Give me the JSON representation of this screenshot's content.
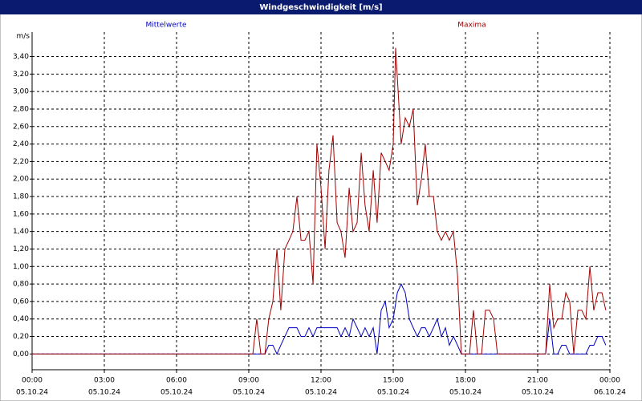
{
  "chart_data": {
    "type": "line",
    "title": "Windgeschwindigkeit [m/s]",
    "y_unit": "m/s",
    "xlim": [
      0,
      24
    ],
    "ylim": [
      -0.18,
      3.68
    ],
    "grid": true,
    "xticks": [
      {
        "value": 0,
        "label": "00:00"
      },
      {
        "value": 3,
        "label": "03:00"
      },
      {
        "value": 6,
        "label": "06:00"
      },
      {
        "value": 9,
        "label": "09:00"
      },
      {
        "value": 12,
        "label": "12:00"
      },
      {
        "value": 15,
        "label": "15:00"
      },
      {
        "value": 18,
        "label": "18:00"
      },
      {
        "value": 21,
        "label": "21:00"
      },
      {
        "value": 24,
        "label": "00:00"
      }
    ],
    "xtick_dates": [
      "05.10.24",
      "05.10.24",
      "05.10.24",
      "05.10.24",
      "05.10.24",
      "05.10.24",
      "05.10.24",
      "05.10.24",
      "06.10.24"
    ],
    "yticks": [
      {
        "value": 0,
        "label": "0,00"
      },
      {
        "value": 0.2,
        "label": "0,20"
      },
      {
        "value": 0.4,
        "label": "0,40"
      },
      {
        "value": 0.6,
        "label": "0,60"
      },
      {
        "value": 0.8,
        "label": "0,80"
      },
      {
        "value": 1.0,
        "label": "1,00"
      },
      {
        "value": 1.2,
        "label": "1,20"
      },
      {
        "value": 1.4,
        "label": "1,40"
      },
      {
        "value": 1.6,
        "label": "1,60"
      },
      {
        "value": 1.8,
        "label": "1,80"
      },
      {
        "value": 2.0,
        "label": "2,00"
      },
      {
        "value": 2.2,
        "label": "2,20"
      },
      {
        "value": 2.4,
        "label": "2,40"
      },
      {
        "value": 2.6,
        "label": "2,60"
      },
      {
        "value": 2.8,
        "label": "2,80"
      },
      {
        "value": 3.0,
        "label": "3,00"
      },
      {
        "value": 3.2,
        "label": "3,20"
      },
      {
        "value": 3.4,
        "label": "3,40"
      }
    ],
    "series": [
      {
        "name": "Mittelwerte",
        "color": "#0000c0",
        "x": [
          0,
          9.67,
          9.83,
          10,
          10.17,
          10.33,
          10.5,
          10.67,
          10.83,
          11,
          11.17,
          11.33,
          11.5,
          11.67,
          11.83,
          12,
          12.17,
          12.33,
          12.5,
          12.67,
          12.83,
          13,
          13.17,
          13.33,
          13.5,
          13.67,
          13.83,
          14,
          14.17,
          14.33,
          14.5,
          14.67,
          14.83,
          15,
          15.17,
          15.33,
          15.5,
          15.67,
          15.83,
          16,
          16.17,
          16.33,
          16.5,
          16.67,
          16.83,
          17,
          17.17,
          17.33,
          17.5,
          17.67,
          17.83,
          21.33,
          21.5,
          21.67,
          21.83,
          22,
          22.17,
          22.33,
          22.5,
          22.67,
          22.83,
          23,
          23.17,
          23.33,
          23.5,
          23.67,
          23.83
        ],
        "values": [
          0,
          0,
          0.1,
          0.1,
          0,
          0.1,
          0.2,
          0.3,
          0.3,
          0.3,
          0.2,
          0.2,
          0.3,
          0.2,
          0.3,
          0.3,
          0.3,
          0.3,
          0.3,
          0.3,
          0.2,
          0.3,
          0.2,
          0.4,
          0.3,
          0.2,
          0.3,
          0.2,
          0.3,
          0,
          0.5,
          0.6,
          0.3,
          0.4,
          0.7,
          0.8,
          0.7,
          0.4,
          0.3,
          0.2,
          0.3,
          0.3,
          0.2,
          0.3,
          0.4,
          0.2,
          0.3,
          0.1,
          0.2,
          0.1,
          0,
          0,
          0.4,
          0,
          0,
          0.1,
          0.1,
          0,
          0,
          0,
          0,
          0,
          0.1,
          0.1,
          0.2,
          0.2,
          0.1
        ]
      },
      {
        "name": "Maxima",
        "color": "#a00000",
        "x": [
          0,
          9.17,
          9.33,
          9.5,
          9.67,
          9.83,
          10,
          10.17,
          10.33,
          10.5,
          10.67,
          10.83,
          11,
          11.17,
          11.33,
          11.5,
          11.67,
          11.83,
          12,
          12.17,
          12.33,
          12.5,
          12.67,
          12.83,
          13,
          13.17,
          13.33,
          13.5,
          13.67,
          13.83,
          14,
          14.17,
          14.33,
          14.5,
          14.67,
          14.83,
          15,
          15.1,
          15.33,
          15.5,
          15.67,
          15.83,
          16,
          16.17,
          16.33,
          16.5,
          16.67,
          16.83,
          17,
          17.17,
          17.33,
          17.5,
          17.67,
          17.83,
          18,
          18.17,
          18.33,
          18.5,
          18.67,
          18.83,
          19,
          19.17,
          19.33,
          21.33,
          21.5,
          21.67,
          21.83,
          22,
          22.17,
          22.33,
          22.5,
          22.67,
          22.83,
          23,
          23.17,
          23.33,
          23.5,
          23.67,
          23.83
        ],
        "values": [
          0,
          0,
          0.4,
          0,
          0,
          0.4,
          0.6,
          1.2,
          0.5,
          1.2,
          1.3,
          1.4,
          1.8,
          1.3,
          1.3,
          1.4,
          0.8,
          2.4,
          1.9,
          1.2,
          2.1,
          2.5,
          1.5,
          1.4,
          1.1,
          1.9,
          1.4,
          1.5,
          2.3,
          1.7,
          1.4,
          2.1,
          1.5,
          2.3,
          2.2,
          2.1,
          2.4,
          3.5,
          2.4,
          2.7,
          2.6,
          2.8,
          1.7,
          2.0,
          2.4,
          1.8,
          1.8,
          1.4,
          1.3,
          1.4,
          1.3,
          1.4,
          0.9,
          0,
          0,
          0,
          0.5,
          0,
          0,
          0.5,
          0.5,
          0.4,
          0,
          0,
          0.8,
          0.3,
          0.4,
          0.4,
          0.7,
          0.6,
          0,
          0.5,
          0.5,
          0.4,
          1.0,
          0.5,
          0.7,
          0.7,
          0.5
        ]
      }
    ]
  }
}
